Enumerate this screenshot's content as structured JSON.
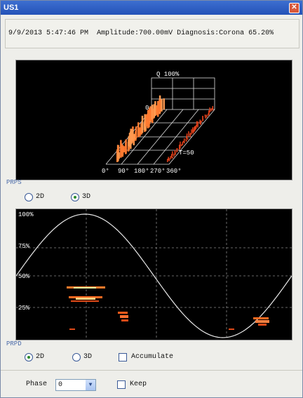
{
  "window": {
    "title": "US1"
  },
  "status": {
    "timestamp": "9/9/2013 5:47:46 PM",
    "amplitude": "Amplitude:700.00mV",
    "diagnosis": "Diagnosis:Corona 65.20%"
  },
  "prps": {
    "plot": {
      "q_label": "Q 100%",
      "zero_label": "0",
      "phase_labels": [
        "0°",
        "90°",
        "180°",
        "270°",
        "360°"
      ],
      "t_label": "T=50"
    },
    "group": "PRPS",
    "options": [
      "2D",
      "3D"
    ],
    "selected": 1
  },
  "prpd": {
    "plot": {
      "y_labels": [
        "100%",
        "75%",
        "50%",
        "25%"
      ]
    },
    "group": "PRPD",
    "options": [
      "2D",
      "3D"
    ],
    "selected": 0,
    "accumulate": {
      "label": "Accumulate",
      "checked": false
    }
  },
  "controls": {
    "phase": {
      "label": "Phase",
      "value": "0"
    },
    "keep": {
      "label": "Keep",
      "checked": false
    }
  }
}
